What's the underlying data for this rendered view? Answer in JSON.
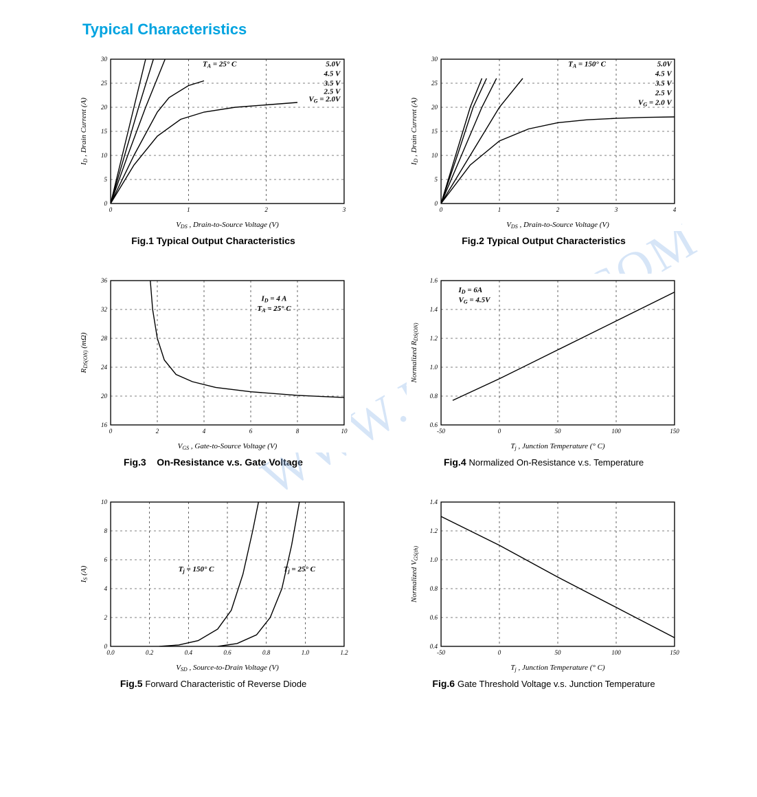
{
  "title": "Typical Characteristics",
  "title_color": "#00a3e0",
  "watermark": "WWW.PWCHIP.COM",
  "watermark_color": "#8db6eb",
  "chart_common": {
    "border_color": "#000000",
    "grid_dash": "3,4",
    "grid_color": "#000000",
    "series_color": "#000000",
    "series_width": 1.4,
    "bg": "#ffffff"
  },
  "fig1": {
    "caption_strong": "Fig.1 Typical Output Characteristics",
    "xlabel": "V_DS  , Drain-to-Source Voltage (V)",
    "ylabel": "I_D , Drain Current (A)",
    "xlim": [
      0,
      3
    ],
    "xtick_step": 1,
    "ylim": [
      0,
      30
    ],
    "ytick_step": 5,
    "condition": "T_A = 25° C",
    "legend": [
      "5.0V",
      "4.5 V",
      "3.5 V",
      "2.5 V",
      "V_G = 2.0V"
    ],
    "series": [
      {
        "name": "5.0V",
        "pts": [
          [
            0,
            0
          ],
          [
            0.15,
            10
          ],
          [
            0.3,
            20
          ],
          [
            0.45,
            30
          ]
        ]
      },
      {
        "name": "4.5V",
        "pts": [
          [
            0,
            0
          ],
          [
            0.18,
            10
          ],
          [
            0.36,
            20
          ],
          [
            0.55,
            30
          ]
        ]
      },
      {
        "name": "3.5V",
        "pts": [
          [
            0,
            0
          ],
          [
            0.22,
            10
          ],
          [
            0.45,
            20
          ],
          [
            0.7,
            30
          ]
        ]
      },
      {
        "name": "2.5V",
        "pts": [
          [
            0,
            0
          ],
          [
            0.3,
            10
          ],
          [
            0.6,
            19
          ],
          [
            0.75,
            22
          ],
          [
            1.0,
            24.5
          ],
          [
            1.2,
            25.5
          ]
        ]
      },
      {
        "name": "2.0V",
        "pts": [
          [
            0,
            0
          ],
          [
            0.3,
            8
          ],
          [
            0.6,
            14
          ],
          [
            0.9,
            17.5
          ],
          [
            1.2,
            19
          ],
          [
            1.6,
            20
          ],
          [
            2.0,
            20.5
          ],
          [
            2.4,
            21
          ]
        ]
      }
    ]
  },
  "fig2": {
    "caption_strong": "Fig.2 Typical Output Characteristics",
    "xlabel": "V_DS  , Drain-to-Source Voltage (V)",
    "ylabel": "I_D , Drain Current (A)",
    "xlim": [
      0,
      4
    ],
    "xtick_step": 1,
    "ylim": [
      0,
      30
    ],
    "ytick_step": 5,
    "condition": "T_A = 150° C",
    "legend": [
      "5.0V",
      "4.5 V",
      "3.5 V",
      "2.5 V",
      "V_G = 2.0 V"
    ],
    "series": [
      {
        "name": "5.0V",
        "pts": [
          [
            0,
            0
          ],
          [
            0.25,
            10
          ],
          [
            0.5,
            20
          ],
          [
            0.7,
            26
          ]
        ]
      },
      {
        "name": "4.5V",
        "pts": [
          [
            0,
            0
          ],
          [
            0.28,
            10
          ],
          [
            0.55,
            20
          ],
          [
            0.78,
            26
          ]
        ]
      },
      {
        "name": "3.5V",
        "pts": [
          [
            0,
            0
          ],
          [
            0.35,
            10
          ],
          [
            0.7,
            20
          ],
          [
            0.95,
            26
          ]
        ]
      },
      {
        "name": "2.5V",
        "pts": [
          [
            0,
            0
          ],
          [
            0.5,
            10
          ],
          [
            1.0,
            20
          ],
          [
            1.4,
            26
          ]
        ]
      },
      {
        "name": "2.0V",
        "pts": [
          [
            0,
            0
          ],
          [
            0.5,
            8
          ],
          [
            1.0,
            13
          ],
          [
            1.5,
            15.5
          ],
          [
            2.0,
            16.8
          ],
          [
            2.5,
            17.4
          ],
          [
            3.0,
            17.7
          ],
          [
            3.5,
            17.9
          ],
          [
            4.0,
            18
          ]
        ]
      }
    ]
  },
  "fig3": {
    "caption_strong": "Fig.3",
    "caption_rest": "On-Resistance v.s. Gate Voltage",
    "xlabel": "V_GS  , Gate-to-Source Voltage (V)",
    "ylabel": "R_DS(ON)  (mΩ)",
    "xlim": [
      0,
      10
    ],
    "xtick_step": 2,
    "ylim": [
      16,
      36
    ],
    "ytick_step": 4,
    "conditions": [
      "I_D = 4 A",
      "T_A = 25° C"
    ],
    "series": [
      {
        "pts": [
          [
            1.7,
            36
          ],
          [
            1.8,
            32
          ],
          [
            2.0,
            28
          ],
          [
            2.3,
            25
          ],
          [
            2.8,
            23
          ],
          [
            3.5,
            22
          ],
          [
            4.5,
            21.2
          ],
          [
            6,
            20.6
          ],
          [
            8,
            20.1
          ],
          [
            10,
            19.8
          ]
        ]
      }
    ]
  },
  "fig4": {
    "caption_strong": "Fig.4",
    "caption_rest": "Normalized On-Resistance v.s. Temperature",
    "xlabel": "T_j  , Junction Temperature (° C)",
    "ylabel": "Normalized R_DS(ON)",
    "xlim": [
      -50,
      150
    ],
    "xtick_step": 50,
    "ylim": [
      0.6,
      1.6
    ],
    "ytick_step": 0.2,
    "conditions": [
      "I_D = 6A",
      "V_G = 4.5V"
    ],
    "series": [
      {
        "pts": [
          [
            -40,
            0.77
          ],
          [
            0,
            0.92
          ],
          [
            50,
            1.12
          ],
          [
            100,
            1.32
          ],
          [
            150,
            1.52
          ]
        ]
      }
    ]
  },
  "fig5": {
    "caption_strong": "Fig.5",
    "caption_rest": "Forward Characteristic of Reverse Diode",
    "xlabel": "V_SD  , Source-to-Drain Voltage (V)",
    "ylabel": "I_S (A)",
    "xlim": [
      0,
      1.2
    ],
    "xtick_step": 0.2,
    "ylim": [
      0,
      10
    ],
    "ytick_step": 2,
    "series": [
      {
        "name": "Tj=150°C",
        "label": "T_j = 150° C",
        "pts": [
          [
            0.25,
            0
          ],
          [
            0.35,
            0.1
          ],
          [
            0.45,
            0.4
          ],
          [
            0.55,
            1.2
          ],
          [
            0.62,
            2.5
          ],
          [
            0.68,
            5
          ],
          [
            0.73,
            8
          ],
          [
            0.76,
            10
          ]
        ]
      },
      {
        "name": "Tj=25°C",
        "label": "T_j = 25° C",
        "pts": [
          [
            0.55,
            0
          ],
          [
            0.65,
            0.2
          ],
          [
            0.75,
            0.8
          ],
          [
            0.82,
            2
          ],
          [
            0.88,
            4
          ],
          [
            0.93,
            7
          ],
          [
            0.97,
            10
          ]
        ]
      }
    ]
  },
  "fig6": {
    "caption_strong": "Fig.6",
    "caption_rest": "Gate Threshold Voltage v.s. Junction Temperature",
    "xlabel": "T_j  , Junction Temperature (° C)",
    "ylabel": "Normalized V_GS(th)",
    "xlim": [
      -50,
      150
    ],
    "xtick_step": 50,
    "ylim": [
      0.4,
      1.4
    ],
    "ytick_step": 0.2,
    "series": [
      {
        "pts": [
          [
            -50,
            1.3
          ],
          [
            0,
            1.1
          ],
          [
            50,
            0.88
          ],
          [
            100,
            0.67
          ],
          [
            150,
            0.46
          ]
        ]
      }
    ]
  }
}
